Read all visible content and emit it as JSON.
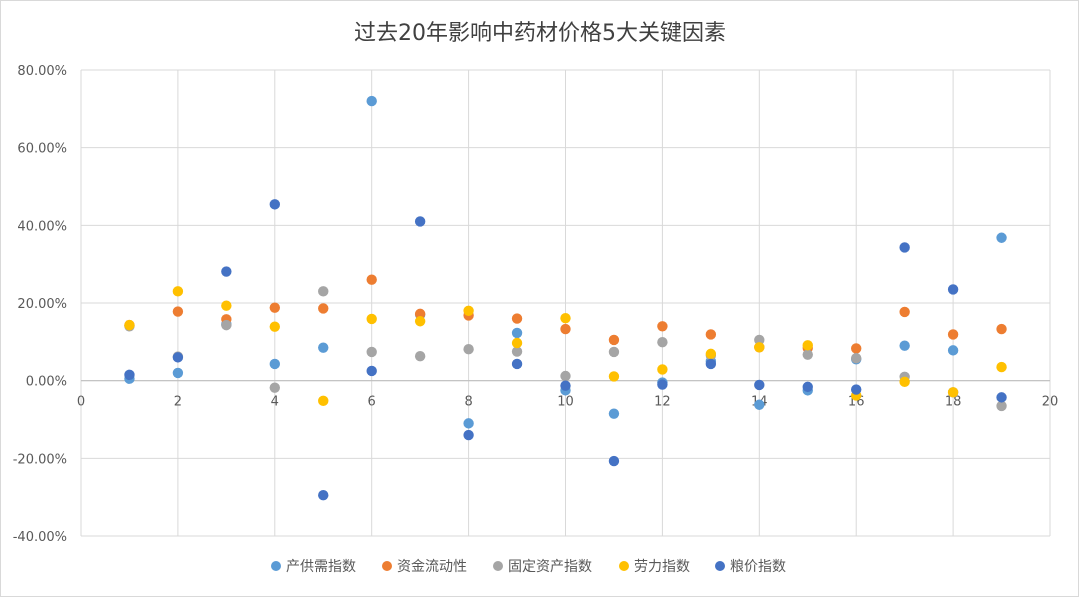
{
  "chart_data": {
    "type": "scatter",
    "title": "过去20年影响中药材价格5大关键因素",
    "xlabel": "",
    "ylabel": "",
    "xlim": [
      0,
      20
    ],
    "ylim": [
      -0.4,
      0.8
    ],
    "x_ticks": [
      "0",
      "2",
      "4",
      "6",
      "8",
      "10",
      "12",
      "14",
      "16",
      "18",
      "20"
    ],
    "y_ticks": [
      "80.00%",
      "60.00%",
      "40.00%",
      "20.00%",
      "0.00%",
      "-20.00%",
      "-40.00%"
    ],
    "grid": true,
    "legend_position": "bottom",
    "series": [
      {
        "name": "产供需指数",
        "color": "#5B9BD5",
        "x": [
          1,
          2,
          3,
          4,
          5,
          6,
          7,
          8,
          9,
          10,
          11,
          12,
          13,
          14,
          15,
          16,
          17,
          18,
          19
        ],
        "y": [
          0.005,
          0.02,
          0.145,
          0.043,
          0.085,
          0.72,
          0.17,
          -0.11,
          0.123,
          -0.025,
          -0.085,
          -0.005,
          0.05,
          -0.062,
          -0.025,
          0.055,
          0.09,
          0.078,
          0.368
        ]
      },
      {
        "name": "资金流动性",
        "color": "#ED7D31",
        "x": [
          1,
          2,
          3,
          4,
          5,
          6,
          7,
          8,
          9,
          10,
          11,
          12,
          13,
          14,
          15,
          16,
          17,
          18,
          19
        ],
        "y": [
          0.143,
          0.178,
          0.158,
          0.188,
          0.186,
          0.26,
          0.172,
          0.168,
          0.16,
          0.133,
          0.105,
          0.14,
          0.119,
          0.086,
          0.084,
          0.083,
          0.177,
          0.119,
          0.133
        ]
      },
      {
        "name": "固定资产指数",
        "color": "#A5A5A5",
        "x": [
          1,
          2,
          3,
          4,
          5,
          6,
          7,
          8,
          9,
          10,
          11,
          12,
          13,
          14,
          15,
          16,
          17,
          18,
          19
        ],
        "y": [
          0.14,
          0.062,
          0.143,
          -0.018,
          0.23,
          0.074,
          0.063,
          0.081,
          0.075,
          0.012,
          0.074,
          0.099,
          0.065,
          0.105,
          0.067,
          0.058,
          0.01,
          -0.03,
          -0.065
        ]
      },
      {
        "name": "劳力指数",
        "color": "#FFC000",
        "x": [
          1,
          2,
          3,
          4,
          5,
          6,
          7,
          8,
          9,
          10,
          11,
          12,
          13,
          14,
          15,
          16,
          17,
          18,
          19
        ],
        "y": [
          0.143,
          0.23,
          0.193,
          0.139,
          -0.052,
          0.159,
          0.153,
          0.18,
          0.097,
          0.161,
          0.011,
          0.029,
          0.069,
          0.086,
          0.091,
          -0.038,
          -0.003,
          -0.03,
          0.035
        ]
      },
      {
        "name": "粮价指数",
        "color": "#4472C4",
        "x": [
          1,
          2,
          3,
          4,
          5,
          6,
          7,
          8,
          9,
          10,
          11,
          12,
          13,
          14,
          15,
          16,
          17,
          18,
          19
        ],
        "y": [
          0.015,
          0.06,
          0.281,
          0.454,
          -0.295,
          0.025,
          0.41,
          -0.14,
          0.043,
          -0.013,
          -0.207,
          -0.01,
          0.043,
          -0.011,
          -0.016,
          -0.023,
          0.343,
          0.235,
          -0.043
        ]
      }
    ]
  }
}
